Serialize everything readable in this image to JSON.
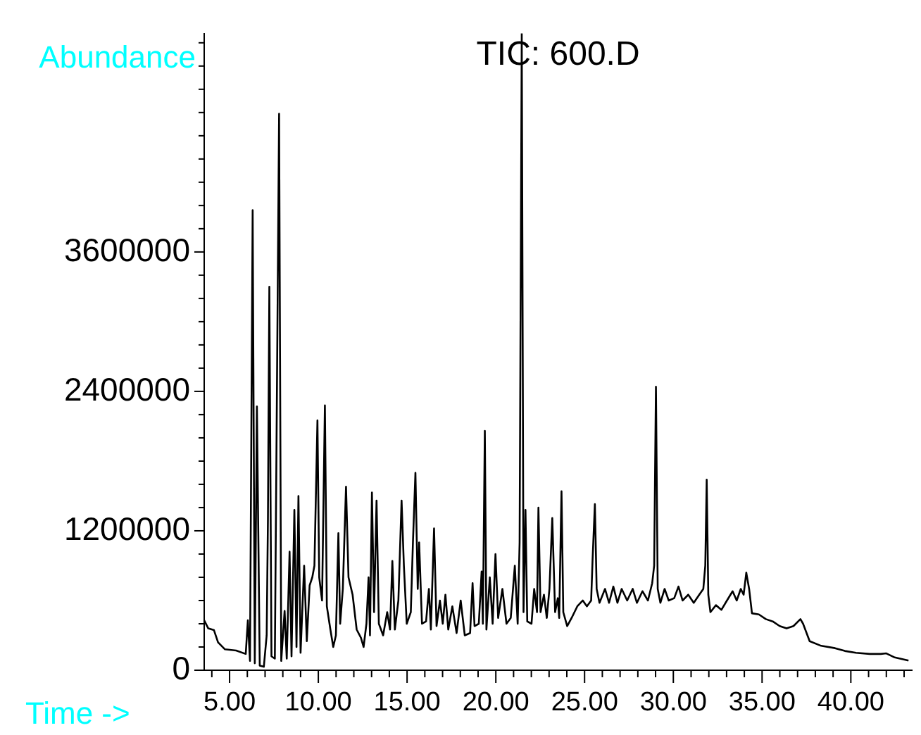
{
  "chart_data": {
    "type": "line",
    "title": "TIC: 600.D",
    "xlabel": "Time ->",
    "ylabel": "Abundance",
    "xlim": [
      3.57,
      43.44
    ],
    "ylim": [
      0,
      5480000
    ],
    "xticks": [
      {
        "value": 4,
        "label": null
      },
      {
        "value": 5,
        "label": "5.00"
      },
      {
        "value": 6,
        "label": null
      },
      {
        "value": 7,
        "label": null
      },
      {
        "value": 8,
        "label": null
      },
      {
        "value": 9,
        "label": null
      },
      {
        "value": 10,
        "label": "10.00"
      },
      {
        "value": 11,
        "label": null
      },
      {
        "value": 12,
        "label": null
      },
      {
        "value": 13,
        "label": null
      },
      {
        "value": 14,
        "label": null
      },
      {
        "value": 15,
        "label": "15.00"
      },
      {
        "value": 16,
        "label": null
      },
      {
        "value": 17,
        "label": null
      },
      {
        "value": 18,
        "label": null
      },
      {
        "value": 19,
        "label": null
      },
      {
        "value": 20,
        "label": "20.00"
      },
      {
        "value": 21,
        "label": null
      },
      {
        "value": 22,
        "label": null
      },
      {
        "value": 23,
        "label": null
      },
      {
        "value": 24,
        "label": null
      },
      {
        "value": 25,
        "label": "25.00"
      },
      {
        "value": 26,
        "label": null
      },
      {
        "value": 27,
        "label": null
      },
      {
        "value": 28,
        "label": null
      },
      {
        "value": 29,
        "label": null
      },
      {
        "value": 30,
        "label": "30.00"
      },
      {
        "value": 31,
        "label": null
      },
      {
        "value": 32,
        "label": null
      },
      {
        "value": 33,
        "label": null
      },
      {
        "value": 34,
        "label": null
      },
      {
        "value": 35,
        "label": "35.00"
      },
      {
        "value": 36,
        "label": null
      },
      {
        "value": 37,
        "label": null
      },
      {
        "value": 38,
        "label": null
      },
      {
        "value": 39,
        "label": null
      },
      {
        "value": 40,
        "label": "40.00"
      },
      {
        "value": 41,
        "label": null
      },
      {
        "value": 42,
        "label": null
      },
      {
        "value": 43,
        "label": null
      }
    ],
    "yticks": [
      0,
      {
        "value": 200000,
        "label": null
      },
      {
        "value": 400000,
        "label": null
      },
      {
        "value": 600000,
        "label": null
      },
      {
        "value": 800000,
        "label": null
      },
      {
        "value": 1000000,
        "label": null
      },
      1200000,
      {
        "value": 1400000,
        "label": null
      },
      {
        "value": 1600000,
        "label": null
      },
      {
        "value": 1800000,
        "label": null
      },
      {
        "value": 2000000,
        "label": null
      },
      {
        "value": 2200000,
        "label": null
      },
      2400000,
      {
        "value": 2600000,
        "label": null
      },
      {
        "value": 2800000,
        "label": null
      },
      {
        "value": 3000000,
        "label": null
      },
      {
        "value": 3200000,
        "label": null
      },
      {
        "value": 3400000,
        "label": null
      },
      3600000,
      {
        "value": 3800000,
        "label": null
      },
      {
        "value": 4000000,
        "label": null
      },
      {
        "value": 4200000,
        "label": null
      },
      {
        "value": 4400000,
        "label": null
      },
      {
        "value": 4600000,
        "label": null
      },
      {
        "value": 4800000,
        "label": null
      },
      {
        "value": 5000000,
        "label": null
      },
      {
        "value": 5200000,
        "label": null
      },
      {
        "value": 5400000,
        "label": null
      }
    ],
    "x": [
      3.57,
      3.8,
      4.12,
      4.35,
      4.74,
      5.37,
      5.91,
      6.03,
      6.15,
      6.3,
      6.42,
      6.54,
      6.7,
      6.93,
      7.09,
      7.16,
      7.24,
      7.36,
      7.55,
      7.79,
      7.91,
      8.1,
      8.22,
      8.38,
      8.49,
      8.65,
      8.77,
      8.88,
      9.0,
      9.2,
      9.35,
      9.51,
      9.66,
      9.78,
      9.95,
      10.05,
      10.21,
      10.37,
      10.48,
      10.68,
      10.84,
      10.99,
      11.13,
      11.23,
      11.38,
      11.56,
      11.7,
      11.93,
      12.16,
      12.4,
      12.55,
      12.71,
      12.83,
      12.91,
      13.02,
      13.14,
      13.28,
      13.41,
      13.65,
      13.88,
      14.04,
      14.17,
      14.31,
      14.51,
      14.69,
      14.82,
      14.98,
      15.21,
      15.33,
      15.47,
      15.6,
      15.68,
      15.84,
      16.07,
      16.23,
      16.34,
      16.52,
      16.66,
      16.85,
      17.01,
      17.16,
      17.32,
      17.55,
      17.79,
      18.02,
      18.25,
      18.55,
      18.69,
      18.8,
      19.04,
      19.2,
      19.27,
      19.38,
      19.47,
      19.66,
      19.82,
      19.98,
      20.13,
      20.37,
      20.6,
      20.84,
      21.07,
      21.23,
      21.34,
      21.46,
      21.56,
      21.67,
      21.77,
      22.01,
      22.16,
      22.32,
      22.4,
      22.52,
      22.71,
      22.87,
      23.02,
      23.18,
      23.34,
      23.49,
      23.57,
      23.7,
      23.8,
      24.02,
      24.27,
      24.59,
      24.9,
      25.13,
      25.37,
      25.45,
      25.58,
      25.68,
      25.84,
      26.15,
      26.38,
      26.62,
      26.85,
      27.09,
      27.4,
      27.71,
      27.95,
      28.26,
      28.57,
      28.81,
      28.92,
      29.02,
      29.12,
      29.27,
      29.51,
      29.74,
      30.05,
      30.29,
      30.52,
      30.84,
      31.15,
      31.46,
      31.69,
      31.8,
      31.88,
      31.97,
      32.09,
      32.4,
      32.71,
      33.02,
      33.34,
      33.57,
      33.8,
      33.96,
      34.11,
      34.27,
      34.43,
      34.82,
      35.21,
      35.6,
      35.99,
      36.38,
      36.77,
      37.16,
      37.31,
      37.68,
      38.33,
      39.11,
      39.66,
      40.29,
      41.07,
      41.69,
      42.0,
      42.47,
      43.25
    ],
    "series": [
      {
        "color": "#000000",
        "values": [
          430000,
          360000,
          345000,
          240000,
          180000,
          170000,
          140000,
          430000,
          80000,
          3960000,
          60000,
          2270000,
          40000,
          30000,
          300000,
          1290000,
          3300000,
          120000,
          100000,
          4790000,
          80000,
          510000,
          100000,
          1020000,
          120000,
          1380000,
          200000,
          1500000,
          150000,
          900000,
          250000,
          730000,
          800000,
          900000,
          2150000,
          800000,
          600000,
          2280000,
          550000,
          350000,
          200000,
          300000,
          1180000,
          400000,
          700000,
          1580000,
          800000,
          650000,
          350000,
          280000,
          200000,
          400000,
          800000,
          300000,
          1530000,
          500000,
          1460000,
          400000,
          300000,
          500000,
          350000,
          940000,
          350000,
          600000,
          1460000,
          900000,
          400000,
          500000,
          1100000,
          1700000,
          700000,
          1100000,
          400000,
          420000,
          700000,
          350000,
          1220000,
          380000,
          600000,
          400000,
          650000,
          350000,
          550000,
          320000,
          600000,
          300000,
          320000,
          750000,
          380000,
          400000,
          850000,
          400000,
          2060000,
          350000,
          800000,
          400000,
          1000000,
          450000,
          700000,
          400000,
          450000,
          900000,
          400000,
          1100000,
          5480000,
          500000,
          1380000,
          420000,
          400000,
          700000,
          500000,
          1400000,
          500000,
          650000,
          450000,
          700000,
          1310000,
          500000,
          620000,
          450000,
          1540000,
          500000,
          380000,
          450000,
          550000,
          600000,
          550000,
          600000,
          950000,
          1430000,
          700000,
          580000,
          700000,
          580000,
          720000,
          580000,
          700000,
          600000,
          700000,
          580000,
          680000,
          600000,
          750000,
          900000,
          2440000,
          700000,
          580000,
          700000,
          600000,
          620000,
          720000,
          600000,
          650000,
          580000,
          650000,
          700000,
          900000,
          1640000,
          650000,
          500000,
          560000,
          520000,
          600000,
          680000,
          600000,
          700000,
          650000,
          840000,
          700000,
          490000,
          480000,
          440000,
          420000,
          380000,
          360000,
          380000,
          440000,
          400000,
          250000,
          210000,
          190000,
          166000,
          150000,
          140000,
          140000,
          145000,
          110000,
          83000
        ]
      }
    ]
  }
}
